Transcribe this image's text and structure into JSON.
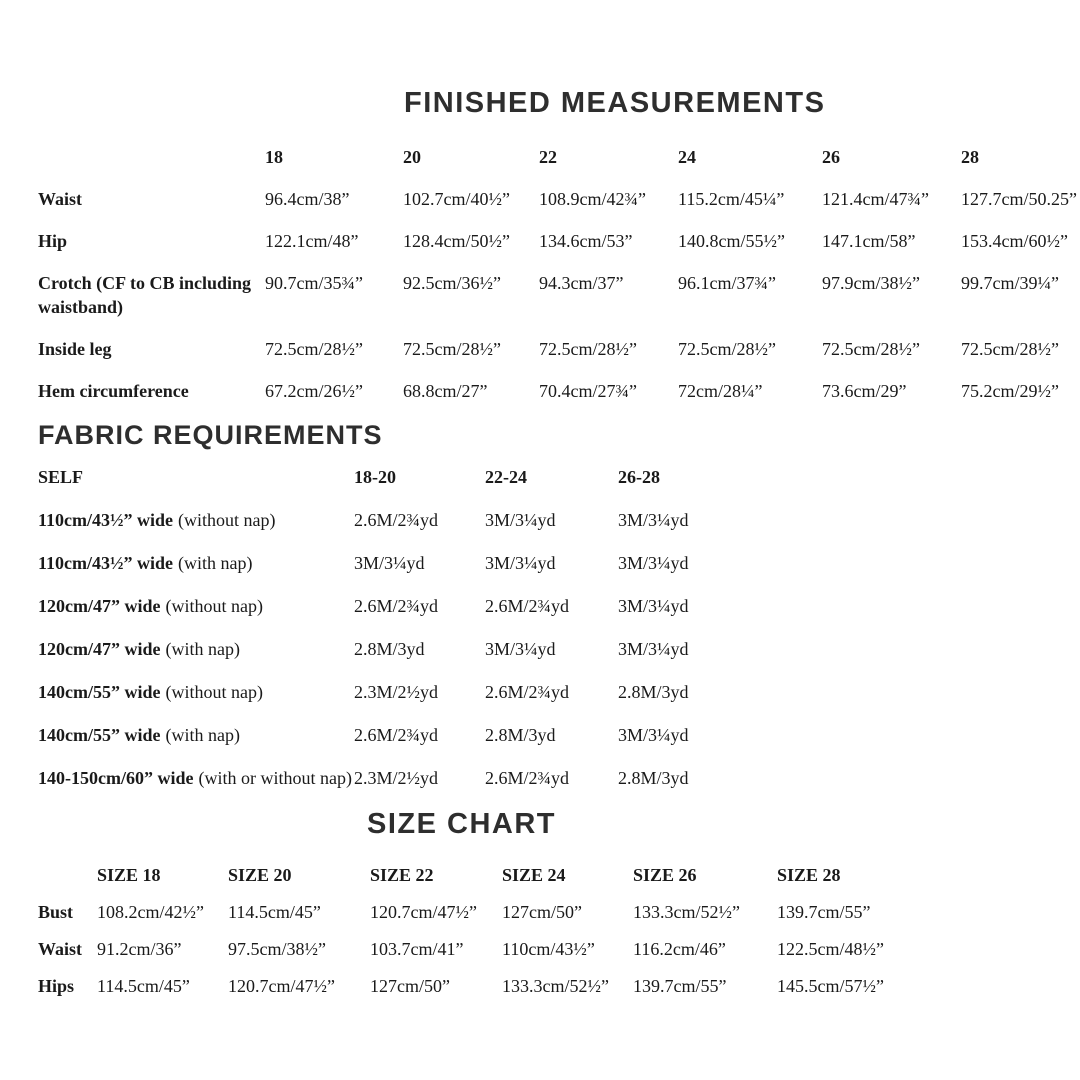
{
  "finished": {
    "title": "FINISHED MEASUREMENTS",
    "columns": [
      "18",
      "20",
      "22",
      "24",
      "26",
      "28"
    ],
    "rows": [
      {
        "label": "Waist",
        "values": [
          "96.4cm/38”",
          "102.7cm/40½”",
          "108.9cm/42¾”",
          "115.2cm/45¼”",
          "121.4cm/47¾”",
          "127.7cm/50.25”"
        ]
      },
      {
        "label": "Hip",
        "values": [
          "122.1cm/48”",
          "128.4cm/50½”",
          "134.6cm/53”",
          "140.8cm/55½”",
          "147.1cm/58”",
          "153.4cm/60½”"
        ]
      },
      {
        "label": "Crotch (CF to CB including waistband)",
        "values": [
          "90.7cm/35¾”",
          "92.5cm/36½”",
          "94.3cm/37”",
          "96.1cm/37¾”",
          "97.9cm/38½”",
          "99.7cm/39¼”"
        ]
      },
      {
        "label": "Inside leg",
        "values": [
          "72.5cm/28½”",
          "72.5cm/28½”",
          "72.5cm/28½”",
          "72.5cm/28½”",
          "72.5cm/28½”",
          "72.5cm/28½”"
        ]
      },
      {
        "label": "Hem circumference",
        "values": [
          "67.2cm/26½”",
          "68.8cm/27”",
          "70.4cm/27¾”",
          "72cm/28¼”",
          "73.6cm/29”",
          "75.2cm/29½”"
        ]
      }
    ]
  },
  "fabric": {
    "title": "FABRIC REQUIREMENTS",
    "self_label": "SELF",
    "columns": [
      "18-20",
      "22-24",
      "26-28"
    ],
    "rows": [
      {
        "label_bold": "110cm/43½” wide",
        "label_note": "(without nap)",
        "values": [
          "2.6M/2¾yd",
          "3M/3¼yd",
          "3M/3¼yd"
        ]
      },
      {
        "label_bold": "110cm/43½” wide",
        "label_note": "(with nap)",
        "values": [
          "3M/3¼yd",
          "3M/3¼yd",
          "3M/3¼yd"
        ]
      },
      {
        "label_bold": "120cm/47” wide",
        "label_note": "(without nap)",
        "values": [
          "2.6M/2¾yd",
          "2.6M/2¾yd",
          "3M/3¼yd"
        ]
      },
      {
        "label_bold": "120cm/47” wide",
        "label_note": "(with nap)",
        "values": [
          "2.8M/3yd",
          "3M/3¼yd",
          "3M/3¼yd"
        ]
      },
      {
        "label_bold": "140cm/55” wide",
        "label_note": "(without nap)",
        "values": [
          "2.3M/2½yd",
          "2.6M/2¾yd",
          "2.8M/3yd"
        ]
      },
      {
        "label_bold": "140cm/55” wide",
        "label_note": "(with nap)",
        "values": [
          "2.6M/2¾yd",
          "2.8M/3yd",
          "3M/3¼yd"
        ]
      },
      {
        "label_bold": "140-150cm/60” wide",
        "label_note": "(with or without nap)",
        "values": [
          "2.3M/2½yd",
          "2.6M/2¾yd",
          "2.8M/3yd"
        ]
      }
    ]
  },
  "size_chart": {
    "title": "SIZE CHART",
    "columns": [
      "SIZE 18",
      "SIZE 20",
      "SIZE 22",
      "SIZE 24",
      "SIZE 26",
      "SIZE 28"
    ],
    "rows": [
      {
        "label": "Bust",
        "values": [
          "108.2cm/42½”",
          "114.5cm/45”",
          "120.7cm/47½”",
          "127cm/50”",
          "133.3cm/52½”",
          "139.7cm/55”"
        ]
      },
      {
        "label": "Waist",
        "values": [
          "91.2cm/36”",
          "97.5cm/38½”",
          "103.7cm/41”",
          "110cm/43½”",
          "116.2cm/46”",
          "122.5cm/48½”"
        ]
      },
      {
        "label": "Hips",
        "values": [
          "114.5cm/45”",
          "120.7cm/47½”",
          "127cm/50”",
          "133.3cm/52½”",
          "139.7cm/55”",
          "145.5cm/57½”"
        ]
      }
    ]
  }
}
